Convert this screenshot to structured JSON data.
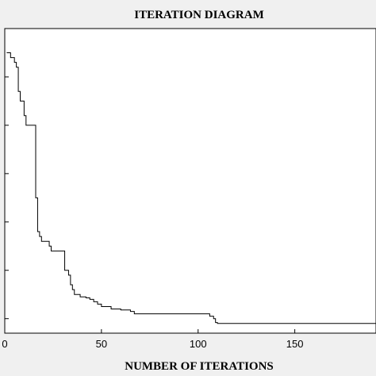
{
  "chart_data": {
    "type": "line",
    "title": "ITERATION DIAGRAM",
    "xlabel": "NUMBER OF ITERATIONS",
    "ylabel": "",
    "xlim": [
      0,
      192
    ],
    "ylim": [
      0.02,
      0.65
    ],
    "xticks": [
      0,
      50,
      100,
      150
    ],
    "yticks": [
      0.05,
      0.15,
      0.25,
      0.35,
      0.45,
      0.55
    ],
    "y_tick_labels_visible": false,
    "grid": false,
    "series": [
      {
        "values_x": [
          1,
          2,
          3,
          4,
          5,
          6,
          7,
          8,
          9,
          10,
          11,
          12,
          13,
          14,
          15,
          16,
          17,
          18,
          19,
          20,
          21,
          22,
          23,
          24,
          25,
          26,
          27,
          28,
          29,
          30,
          31,
          32,
          33,
          34,
          35,
          36,
          37,
          38,
          39,
          40,
          42,
          44,
          46,
          48,
          50,
          55,
          60,
          65,
          67,
          80,
          90,
          100,
          105,
          106,
          108,
          109,
          110,
          130,
          150,
          170,
          192
        ],
        "values_y": [
          0.6,
          0.6,
          0.59,
          0.59,
          0.58,
          0.57,
          0.52,
          0.5,
          0.5,
          0.47,
          0.45,
          0.45,
          0.45,
          0.45,
          0.45,
          0.3,
          0.23,
          0.22,
          0.21,
          0.21,
          0.21,
          0.21,
          0.2,
          0.19,
          0.19,
          0.19,
          0.19,
          0.19,
          0.19,
          0.19,
          0.15,
          0.15,
          0.14,
          0.12,
          0.11,
          0.1,
          0.1,
          0.1,
          0.095,
          0.095,
          0.093,
          0.09,
          0.085,
          0.08,
          0.075,
          0.07,
          0.068,
          0.065,
          0.06,
          0.06,
          0.06,
          0.06,
          0.06,
          0.055,
          0.05,
          0.042,
          0.04,
          0.04,
          0.04,
          0.04,
          0.04
        ],
        "color": "#000000"
      }
    ]
  }
}
